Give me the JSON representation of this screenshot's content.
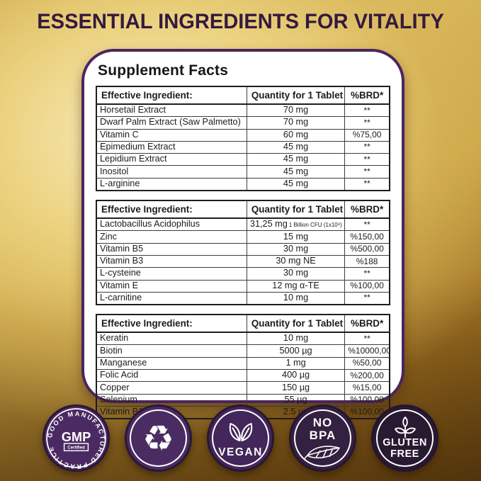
{
  "header": {
    "title": "ESSENTIAL INGREDIENTS FOR VITALITY"
  },
  "card": {
    "heading": "Supplement Facts",
    "columns": [
      "Effective Ingredient:",
      "Quantity for 1 Tablet",
      "%BRD*"
    ],
    "tables": [
      {
        "rows": [
          {
            "ingredient": "Horsetail Extract",
            "quantity": "70 mg",
            "note": "",
            "brd": "**"
          },
          {
            "ingredient": "Dwarf Palm Extract (Saw Palmetto)",
            "quantity": "70 mg",
            "note": "",
            "brd": "**"
          },
          {
            "ingredient": "Vitamin C",
            "quantity": "60 mg",
            "note": "",
            "brd": "%75,00"
          },
          {
            "ingredient": "Epimedium Extract",
            "quantity": "45 mg",
            "note": "",
            "brd": "**"
          },
          {
            "ingredient": "Lepidium Extract",
            "quantity": "45 mg",
            "note": "",
            "brd": "**"
          },
          {
            "ingredient": "Inositol",
            "quantity": "45 mg",
            "note": "",
            "brd": "**"
          },
          {
            "ingredient": "L-arginine",
            "quantity": "45 mg",
            "note": "",
            "brd": "**"
          }
        ]
      },
      {
        "rows": [
          {
            "ingredient": "Lactobacillus Acidophilus",
            "quantity": "31,25 mg",
            "note": "1 Billion CFU (1x10⁹)",
            "brd": "**"
          },
          {
            "ingredient": "Zinc",
            "quantity": "15 mg",
            "note": "",
            "brd": "%150,00"
          },
          {
            "ingredient": "Vitamin B5",
            "quantity": "30 mg",
            "note": "",
            "brd": "%500,00"
          },
          {
            "ingredient": "Vitamin B3",
            "quantity": "30 mg NE",
            "note": "",
            "brd": "%188"
          },
          {
            "ingredient": "L-cysteine",
            "quantity": "30 mg",
            "note": "",
            "brd": "**"
          },
          {
            "ingredient": "Vitamin E",
            "quantity": "12 mg α-TE",
            "note": "",
            "brd": "%100,00"
          },
          {
            "ingredient": "L-carnitine",
            "quantity": "10 mg",
            "note": "",
            "brd": "**"
          }
        ]
      },
      {
        "rows": [
          {
            "ingredient": "Keratin",
            "quantity": "10 mg",
            "note": "",
            "brd": "**"
          },
          {
            "ingredient": "Biotin",
            "quantity": "5000 µg",
            "note": "",
            "brd": "%10000,00"
          },
          {
            "ingredient": "Manganese",
            "quantity": "1 mg",
            "note": "",
            "brd": "%50,00"
          },
          {
            "ingredient": "Folic Acid",
            "quantity": "400 µg",
            "note": "",
            "brd": "%200,00"
          },
          {
            "ingredient": "Copper",
            "quantity": "150 µg",
            "note": "",
            "brd": "%15,00"
          },
          {
            "ingredient": "Selenium",
            "quantity": "55 µg",
            "note": "",
            "brd": "%100,00"
          },
          {
            "ingredient": "Vitamin B12",
            "quantity": "2.5 µg",
            "note": "",
            "brd": "%100,00"
          }
        ]
      }
    ]
  },
  "badges": {
    "gmp": {
      "ring_text": "GOOD MANUFACTURED PRACTICE",
      "center": "GMP",
      "certified": "Certified"
    },
    "recycle": {
      "glyph": "♻"
    },
    "vegan": {
      "label": "VEGAN"
    },
    "no_bpa": {
      "line1": "NO",
      "line2": "BPA"
    },
    "gluten_free": {
      "line1": "GLUTEN",
      "line2": "FREE"
    }
  },
  "colors": {
    "title_purple": "#34193f",
    "card_border_purple": "#4a2560",
    "badge_gmp": "#4b2a63",
    "badge_recycle": "#4a2c63",
    "badge_vegan": "#43265a",
    "badge_no_bpa": "#342041",
    "badge_gluten_free": "#281a31",
    "background_gold": "#d9b85e",
    "background_brown": "#6b4712"
  }
}
